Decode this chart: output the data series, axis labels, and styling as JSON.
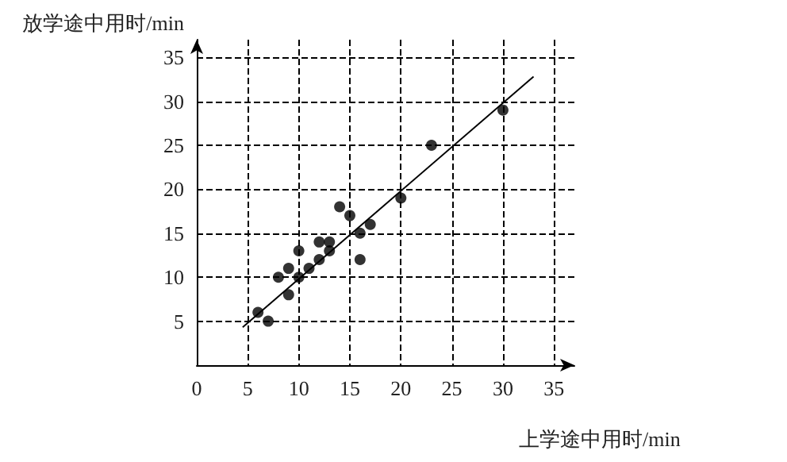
{
  "chart_data": {
    "type": "scatter",
    "xlabel": "上学途中用时/min",
    "ylabel": "放学途中用时/min",
    "xlim": [
      0,
      37
    ],
    "ylim": [
      0,
      37
    ],
    "xticks": [
      0,
      5,
      10,
      15,
      20,
      25,
      30,
      35
    ],
    "yticks": [
      5,
      10,
      15,
      20,
      25,
      30,
      35
    ],
    "grid": true,
    "series": [
      {
        "marker": "circle",
        "color": "#000000",
        "x": [
          6,
          7,
          8,
          9,
          9,
          10,
          10,
          11,
          12,
          12,
          13,
          13,
          14,
          15,
          16,
          16,
          17,
          20,
          23,
          30
        ],
        "values": [
          6,
          5,
          10,
          8,
          11,
          10,
          13,
          11,
          12,
          14,
          13,
          14,
          18,
          17,
          15,
          12,
          16,
          19,
          25,
          29
        ]
      },
      {
        "type": "line",
        "marker": "none",
        "color": "#000000",
        "x": [
          4.5,
          33
        ],
        "values": [
          4.3,
          32.8
        ]
      }
    ]
  }
}
